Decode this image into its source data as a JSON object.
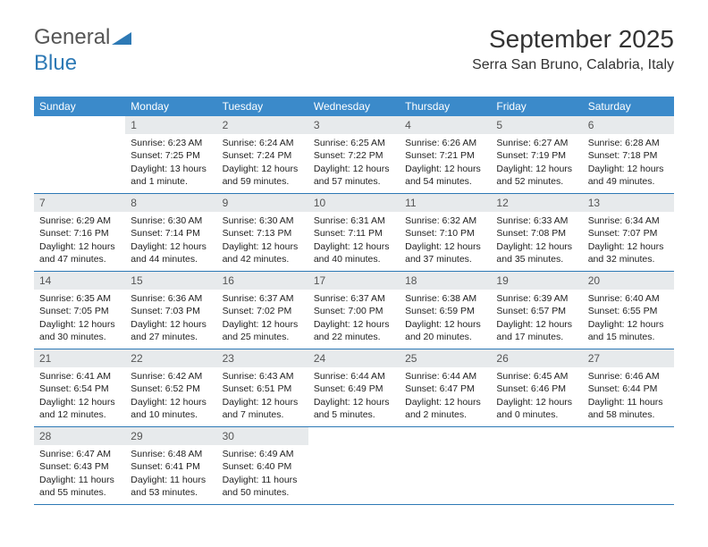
{
  "logo": {
    "text1": "General",
    "text2": "Blue"
  },
  "header": {
    "title": "September 2025",
    "location": "Serra San Bruno, Calabria, Italy"
  },
  "colors": {
    "header_bg": "#3b8aca",
    "header_text": "#ffffff",
    "daynum_bg": "#e7eaec",
    "daynum_text": "#555555",
    "rule": "#2d79b5",
    "body_text": "#222222",
    "page_bg": "#ffffff"
  },
  "dow": [
    "Sunday",
    "Monday",
    "Tuesday",
    "Wednesday",
    "Thursday",
    "Friday",
    "Saturday"
  ],
  "weeks": [
    [
      {
        "n": "",
        "sr": "",
        "ss": "",
        "dl": ""
      },
      {
        "n": "1",
        "sr": "Sunrise: 6:23 AM",
        "ss": "Sunset: 7:25 PM",
        "dl": "Daylight: 13 hours and 1 minute."
      },
      {
        "n": "2",
        "sr": "Sunrise: 6:24 AM",
        "ss": "Sunset: 7:24 PM",
        "dl": "Daylight: 12 hours and 59 minutes."
      },
      {
        "n": "3",
        "sr": "Sunrise: 6:25 AM",
        "ss": "Sunset: 7:22 PM",
        "dl": "Daylight: 12 hours and 57 minutes."
      },
      {
        "n": "4",
        "sr": "Sunrise: 6:26 AM",
        "ss": "Sunset: 7:21 PM",
        "dl": "Daylight: 12 hours and 54 minutes."
      },
      {
        "n": "5",
        "sr": "Sunrise: 6:27 AM",
        "ss": "Sunset: 7:19 PM",
        "dl": "Daylight: 12 hours and 52 minutes."
      },
      {
        "n": "6",
        "sr": "Sunrise: 6:28 AM",
        "ss": "Sunset: 7:18 PM",
        "dl": "Daylight: 12 hours and 49 minutes."
      }
    ],
    [
      {
        "n": "7",
        "sr": "Sunrise: 6:29 AM",
        "ss": "Sunset: 7:16 PM",
        "dl": "Daylight: 12 hours and 47 minutes."
      },
      {
        "n": "8",
        "sr": "Sunrise: 6:30 AM",
        "ss": "Sunset: 7:14 PM",
        "dl": "Daylight: 12 hours and 44 minutes."
      },
      {
        "n": "9",
        "sr": "Sunrise: 6:30 AM",
        "ss": "Sunset: 7:13 PM",
        "dl": "Daylight: 12 hours and 42 minutes."
      },
      {
        "n": "10",
        "sr": "Sunrise: 6:31 AM",
        "ss": "Sunset: 7:11 PM",
        "dl": "Daylight: 12 hours and 40 minutes."
      },
      {
        "n": "11",
        "sr": "Sunrise: 6:32 AM",
        "ss": "Sunset: 7:10 PM",
        "dl": "Daylight: 12 hours and 37 minutes."
      },
      {
        "n": "12",
        "sr": "Sunrise: 6:33 AM",
        "ss": "Sunset: 7:08 PM",
        "dl": "Daylight: 12 hours and 35 minutes."
      },
      {
        "n": "13",
        "sr": "Sunrise: 6:34 AM",
        "ss": "Sunset: 7:07 PM",
        "dl": "Daylight: 12 hours and 32 minutes."
      }
    ],
    [
      {
        "n": "14",
        "sr": "Sunrise: 6:35 AM",
        "ss": "Sunset: 7:05 PM",
        "dl": "Daylight: 12 hours and 30 minutes."
      },
      {
        "n": "15",
        "sr": "Sunrise: 6:36 AM",
        "ss": "Sunset: 7:03 PM",
        "dl": "Daylight: 12 hours and 27 minutes."
      },
      {
        "n": "16",
        "sr": "Sunrise: 6:37 AM",
        "ss": "Sunset: 7:02 PM",
        "dl": "Daylight: 12 hours and 25 minutes."
      },
      {
        "n": "17",
        "sr": "Sunrise: 6:37 AM",
        "ss": "Sunset: 7:00 PM",
        "dl": "Daylight: 12 hours and 22 minutes."
      },
      {
        "n": "18",
        "sr": "Sunrise: 6:38 AM",
        "ss": "Sunset: 6:59 PM",
        "dl": "Daylight: 12 hours and 20 minutes."
      },
      {
        "n": "19",
        "sr": "Sunrise: 6:39 AM",
        "ss": "Sunset: 6:57 PM",
        "dl": "Daylight: 12 hours and 17 minutes."
      },
      {
        "n": "20",
        "sr": "Sunrise: 6:40 AM",
        "ss": "Sunset: 6:55 PM",
        "dl": "Daylight: 12 hours and 15 minutes."
      }
    ],
    [
      {
        "n": "21",
        "sr": "Sunrise: 6:41 AM",
        "ss": "Sunset: 6:54 PM",
        "dl": "Daylight: 12 hours and 12 minutes."
      },
      {
        "n": "22",
        "sr": "Sunrise: 6:42 AM",
        "ss": "Sunset: 6:52 PM",
        "dl": "Daylight: 12 hours and 10 minutes."
      },
      {
        "n": "23",
        "sr": "Sunrise: 6:43 AM",
        "ss": "Sunset: 6:51 PM",
        "dl": "Daylight: 12 hours and 7 minutes."
      },
      {
        "n": "24",
        "sr": "Sunrise: 6:44 AM",
        "ss": "Sunset: 6:49 PM",
        "dl": "Daylight: 12 hours and 5 minutes."
      },
      {
        "n": "25",
        "sr": "Sunrise: 6:44 AM",
        "ss": "Sunset: 6:47 PM",
        "dl": "Daylight: 12 hours and 2 minutes."
      },
      {
        "n": "26",
        "sr": "Sunrise: 6:45 AM",
        "ss": "Sunset: 6:46 PM",
        "dl": "Daylight: 12 hours and 0 minutes."
      },
      {
        "n": "27",
        "sr": "Sunrise: 6:46 AM",
        "ss": "Sunset: 6:44 PM",
        "dl": "Daylight: 11 hours and 58 minutes."
      }
    ],
    [
      {
        "n": "28",
        "sr": "Sunrise: 6:47 AM",
        "ss": "Sunset: 6:43 PM",
        "dl": "Daylight: 11 hours and 55 minutes."
      },
      {
        "n": "29",
        "sr": "Sunrise: 6:48 AM",
        "ss": "Sunset: 6:41 PM",
        "dl": "Daylight: 11 hours and 53 minutes."
      },
      {
        "n": "30",
        "sr": "Sunrise: 6:49 AM",
        "ss": "Sunset: 6:40 PM",
        "dl": "Daylight: 11 hours and 50 minutes."
      },
      {
        "n": "",
        "sr": "",
        "ss": "",
        "dl": ""
      },
      {
        "n": "",
        "sr": "",
        "ss": "",
        "dl": ""
      },
      {
        "n": "",
        "sr": "",
        "ss": "",
        "dl": ""
      },
      {
        "n": "",
        "sr": "",
        "ss": "",
        "dl": ""
      }
    ]
  ]
}
